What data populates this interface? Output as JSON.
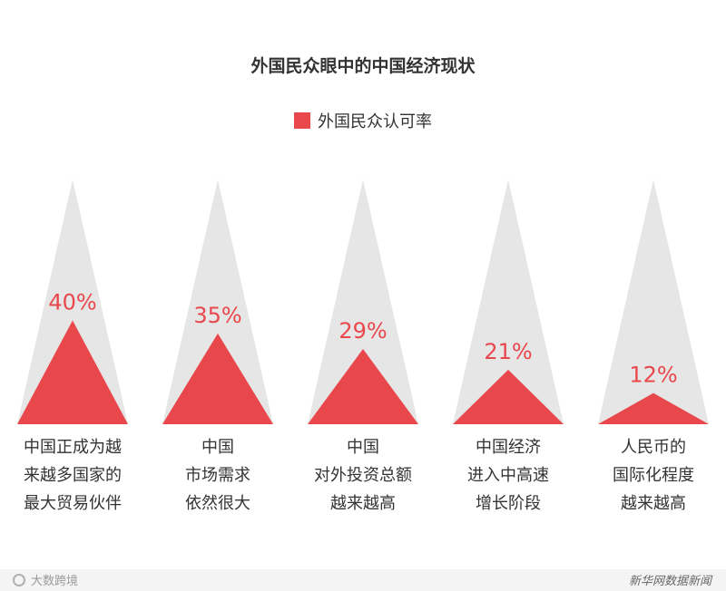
{
  "title": "外国民众眼中的中国经济现状",
  "legend": {
    "label": "外国民众认可率"
  },
  "colors": {
    "accent": "#e8474c",
    "background_triangle": "#e6e6e6",
    "text": "#333333"
  },
  "chart_data": {
    "type": "bar",
    "title": "外国民众眼中的中国经济现状",
    "series": [
      {
        "name": "外国民众认可率",
        "values": [
          40,
          35,
          29,
          21,
          12
        ]
      }
    ],
    "values": [
      40,
      35,
      29,
      21,
      12
    ],
    "value_labels": [
      "40%",
      "35%",
      "29%",
      "21%",
      "12%"
    ],
    "categories": [
      [
        "中国正成为越",
        "来越多国家的",
        "最大贸易伙伴"
      ],
      [
        "中国",
        "市场需求",
        "依然很大"
      ],
      [
        "中国",
        "对外投资总额",
        "越来越高"
      ],
      [
        "中国经济",
        "进入中高速",
        "增长阶段"
      ],
      [
        "人民币的",
        "国际化程度",
        "越来越高"
      ]
    ],
    "ylim": [
      0,
      100
    ],
    "legend_position": "top-center",
    "grid": false
  },
  "footer": {
    "left": "大数跨境",
    "right": "新华网数据新闻"
  }
}
